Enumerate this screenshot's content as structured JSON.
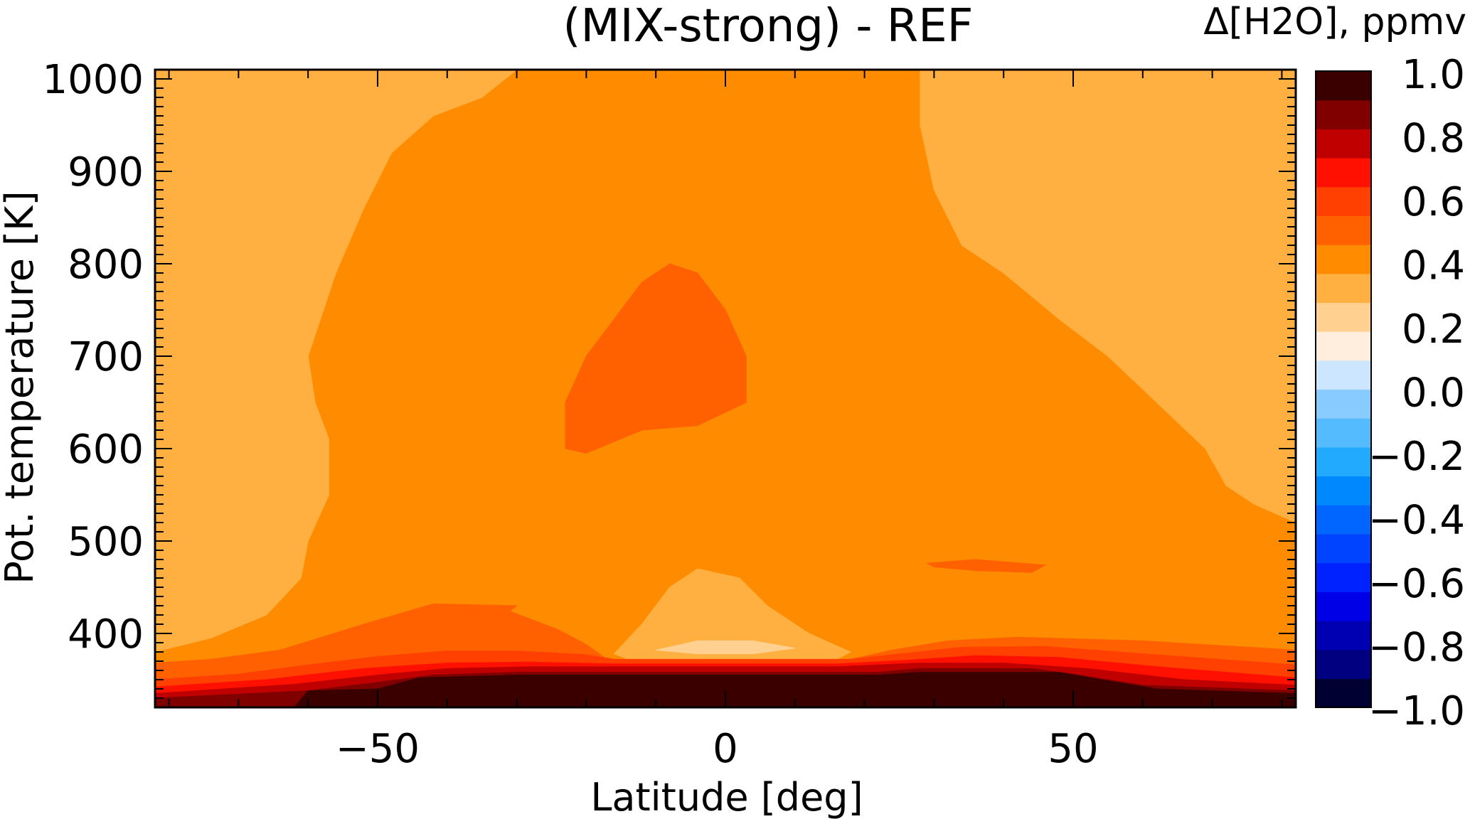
{
  "chart_data": {
    "type": "heatmap",
    "title": "(MIX-strong) - REF",
    "xlabel": "Latitude [deg]",
    "ylabel": "Pot. temperature [K]",
    "xlim": [
      -82,
      82
    ],
    "ylim": [
      320,
      1010
    ],
    "x_ticks": [
      -50,
      0,
      50
    ],
    "x_tick_labels": [
      "−50",
      "0",
      "50"
    ],
    "y_ticks": [
      400,
      500,
      600,
      700,
      800,
      900,
      1000
    ],
    "y_tick_labels": [
      "400",
      "500",
      "600",
      "700",
      "800",
      "900",
      "1000"
    ],
    "colorbar": {
      "title": "Δ[H2O], ppmv",
      "levels": [
        -1.0,
        -0.8,
        -0.6,
        -0.4,
        -0.2,
        0.0,
        0.2,
        0.4,
        0.6,
        0.8,
        1.0
      ],
      "tick_labels": [
        "−1.0",
        "−0.8",
        "−0.6",
        "−0.4",
        "−0.2",
        "0.0",
        "0.2",
        "0.4",
        "0.6",
        "0.8",
        "1.0"
      ],
      "colors": [
        "#000033",
        "#000080",
        "#0000b3",
        "#0000e6",
        "#0022ff",
        "#0044ff",
        "#0066ff",
        "#0088ff",
        "#22aaff",
        "#55bbff",
        "#88ccff",
        "#cce6ff",
        "#ffeedd",
        "#ffd090",
        "#ffb040",
        "#ff8c00",
        "#ff6000",
        "#ff4000",
        "#ff1000",
        "#c00000",
        "#800000",
        "#3a0000"
      ]
    },
    "regions": [
      {
        "level": "0.1 to 0.2",
        "color": "#ffd090",
        "points": [
          [
            -82,
            1010
          ],
          [
            -68,
            1010
          ],
          [
            -73,
            950
          ],
          [
            -77,
            910
          ],
          [
            -82,
            870
          ]
        ]
      },
      {
        "level": "0.1 to 0.2",
        "color": "#ffd090",
        "points": [
          [
            -82,
            620
          ],
          [
            -75,
            600
          ],
          [
            -74,
            550
          ],
          [
            -82,
            500
          ]
        ]
      },
      {
        "level": "0.1 to 0.2",
        "color": "#ffd090",
        "points": [
          [
            72,
            1010
          ],
          [
            82,
            1010
          ],
          [
            82,
            930
          ],
          [
            76,
            970
          ]
        ]
      },
      {
        "level": "0.2 to 0.3",
        "color": "#ffb040",
        "points": [
          [
            -82,
            1010
          ],
          [
            -30,
            1010
          ],
          [
            -35,
            980
          ],
          [
            -42,
            960
          ],
          [
            -48,
            920
          ],
          [
            -52,
            860
          ],
          [
            -56,
            790
          ],
          [
            -60,
            700
          ],
          [
            -59,
            650
          ],
          [
            -57,
            610
          ],
          [
            -57,
            550
          ],
          [
            -60,
            500
          ],
          [
            -61,
            460
          ],
          [
            -66,
            420
          ],
          [
            -74,
            395
          ],
          [
            -82,
            380
          ]
        ]
      },
      {
        "level": "0.2 to 0.3",
        "color": "#ffb040",
        "points": [
          [
            28,
            1010
          ],
          [
            82,
            1010
          ],
          [
            82,
            520
          ],
          [
            76,
            540
          ],
          [
            72,
            560
          ],
          [
            69,
            600
          ],
          [
            62,
            650
          ],
          [
            55,
            700
          ],
          [
            48,
            740
          ],
          [
            40,
            790
          ],
          [
            34,
            820
          ],
          [
            30,
            880
          ],
          [
            28,
            950
          ]
        ]
      },
      {
        "level": "0.2 to 0.3",
        "color": "#ffb040",
        "points": [
          [
            -16,
            378
          ],
          [
            -12,
            410
          ],
          [
            -8,
            450
          ],
          [
            -4,
            470
          ],
          [
            2,
            460
          ],
          [
            6,
            430
          ],
          [
            12,
            400
          ],
          [
            18,
            380
          ],
          [
            16,
            372
          ],
          [
            -14,
            372
          ]
        ]
      },
      {
        "level": "0.1 to 0.2",
        "color": "#ffd090",
        "points": [
          [
            -10,
            382
          ],
          [
            -4,
            392
          ],
          [
            4,
            392
          ],
          [
            10,
            384
          ],
          [
            4,
            378
          ],
          [
            -4,
            378
          ]
        ]
      },
      {
        "level": "0.3 to 0.4",
        "color": "#ff6000",
        "points": [
          [
            -23,
            650
          ],
          [
            -20,
            700
          ],
          [
            -16,
            740
          ],
          [
            -12,
            780
          ],
          [
            -8,
            800
          ],
          [
            -4,
            790
          ],
          [
            0,
            750
          ],
          [
            3,
            700
          ],
          [
            3,
            650
          ],
          [
            -4,
            625
          ],
          [
            -12,
            620
          ],
          [
            -20,
            595
          ],
          [
            -23,
            600
          ]
        ]
      },
      {
        "level": "0.3 to 0.4",
        "color": "#ff6000",
        "points": [
          [
            29,
            476
          ],
          [
            36,
            480
          ],
          [
            46,
            474
          ],
          [
            44,
            466
          ],
          [
            36,
            468
          ],
          [
            30,
            472
          ]
        ]
      },
      {
        "level": "0.3 to 0.4",
        "color": "#ff6000",
        "points": [
          [
            -82,
            368
          ],
          [
            -74,
            372
          ],
          [
            -64,
            382
          ],
          [
            -52,
            410
          ],
          [
            -42,
            432
          ],
          [
            -30,
            430
          ],
          [
            -31,
            424
          ],
          [
            -24,
            404
          ],
          [
            -20,
            388
          ],
          [
            -17,
            372
          ],
          [
            -82,
            350
          ]
        ]
      },
      {
        "level": "0.3 to 0.4",
        "color": "#ff6000",
        "points": [
          [
            18,
            372
          ],
          [
            24,
            382
          ],
          [
            32,
            392
          ],
          [
            42,
            396
          ],
          [
            60,
            392
          ],
          [
            82,
            382
          ],
          [
            82,
            355
          ],
          [
            18,
            355
          ]
        ]
      },
      {
        "level": "0.4 to 0.5",
        "color": "#ff4000",
        "points": [
          [
            -82,
            350
          ],
          [
            -70,
            356
          ],
          [
            -60,
            366
          ],
          [
            -50,
            375
          ],
          [
            -40,
            381
          ],
          [
            -30,
            381
          ],
          [
            -20,
            377
          ],
          [
            -16,
            372
          ],
          [
            18,
            372
          ],
          [
            24,
            377
          ],
          [
            34,
            385
          ],
          [
            46,
            386
          ],
          [
            60,
            378
          ],
          [
            82,
            366
          ],
          [
            82,
            340
          ],
          [
            -82,
            335
          ]
        ]
      },
      {
        "level": "0.5 to 0.6",
        "color": "#ff1000",
        "points": [
          [
            -82,
            342
          ],
          [
            -66,
            350
          ],
          [
            -52,
            362
          ],
          [
            -40,
            368
          ],
          [
            -28,
            369
          ],
          [
            -16,
            367
          ],
          [
            16,
            367
          ],
          [
            26,
            371
          ],
          [
            36,
            376
          ],
          [
            48,
            374
          ],
          [
            62,
            364
          ],
          [
            82,
            352
          ],
          [
            82,
            335
          ],
          [
            -82,
            330
          ]
        ]
      },
      {
        "level": "0.6 to 0.8",
        "color": "#c00000",
        "points": [
          [
            -82,
            335
          ],
          [
            -62,
            345
          ],
          [
            -50,
            355
          ],
          [
            -40,
            362
          ],
          [
            -28,
            364
          ],
          [
            -16,
            364
          ],
          [
            16,
            364
          ],
          [
            28,
            368
          ],
          [
            40,
            368
          ],
          [
            52,
            362
          ],
          [
            66,
            350
          ],
          [
            82,
            344
          ],
          [
            82,
            320
          ],
          [
            -82,
            320
          ]
        ]
      },
      {
        "level": "0.8 to 0.9",
        "color": "#800000",
        "points": [
          [
            -82,
            330
          ],
          [
            -60,
            338
          ],
          [
            -50,
            347
          ],
          [
            -42,
            355
          ],
          [
            -30,
            358
          ],
          [
            22,
            358
          ],
          [
            28,
            362
          ],
          [
            44,
            362
          ],
          [
            50,
            356
          ],
          [
            60,
            344
          ],
          [
            82,
            338
          ],
          [
            82,
            320
          ],
          [
            -82,
            320
          ]
        ]
      },
      {
        "level": "above 0.9",
        "color": "#3a0000",
        "points": [
          [
            -62,
            320
          ],
          [
            -60,
            338
          ],
          [
            -50,
            340
          ],
          [
            -44,
            352
          ],
          [
            -30,
            355
          ],
          [
            22,
            355
          ],
          [
            28,
            358
          ],
          [
            48,
            358
          ],
          [
            54,
            350
          ],
          [
            62,
            340
          ],
          [
            82,
            335
          ],
          [
            82,
            320
          ]
        ]
      }
    ]
  }
}
